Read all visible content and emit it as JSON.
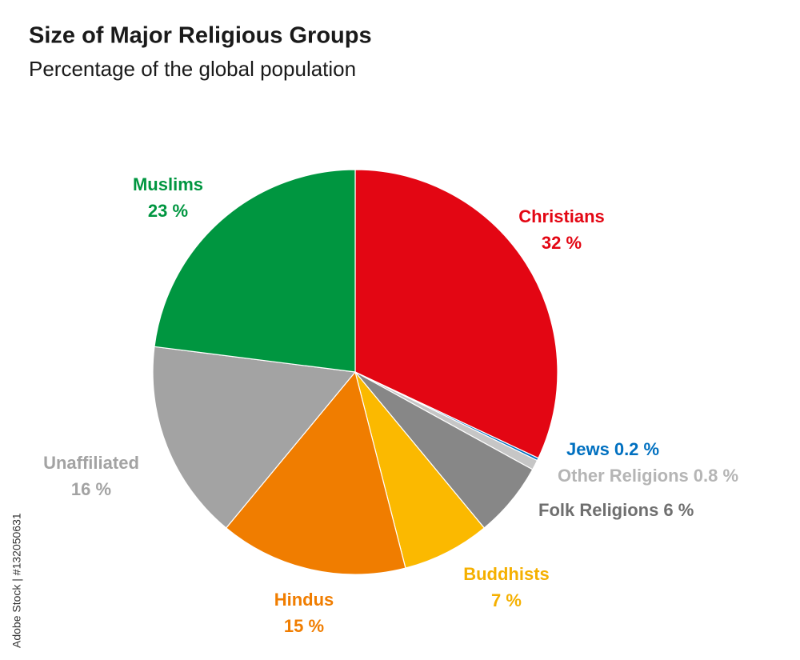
{
  "chart_data": {
    "type": "pie",
    "title": "Size of Major Religious Groups",
    "subtitle": "Percentage of the global population",
    "categories": [
      "Christians",
      "Jews",
      "Other Religions",
      "Folk Religions",
      "Buddhists",
      "Hindus",
      "Unaffiliated",
      "Muslims"
    ],
    "values": [
      32,
      0.2,
      0.8,
      6,
      7,
      15,
      16,
      23
    ],
    "value_labels": [
      "32 %",
      "0.2 %",
      "0.8 %",
      "6 %",
      "7 %",
      "15 %",
      "16 %",
      "23 %"
    ],
    "colors": [
      "#e30613",
      "#0070c0",
      "#c6c6c6",
      "#878787",
      "#fbb900",
      "#f07d00",
      "#a3a3a3",
      "#009640"
    ],
    "label_colors": [
      "#e30613",
      "#0070c0",
      "#b5b5b5",
      "#6f6f6f",
      "#f5b000",
      "#f07d00",
      "#a3a3a3",
      "#009640"
    ]
  },
  "watermark": "Adobe Stock | #132050631"
}
